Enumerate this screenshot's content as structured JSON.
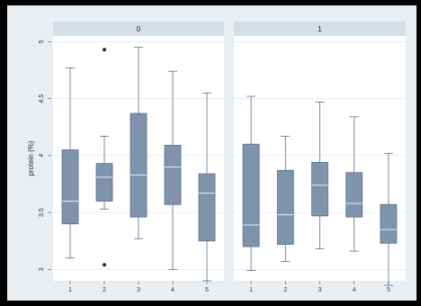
{
  "chart_data": {
    "type": "box",
    "ylabel": "protein (%)",
    "ylim": [
      2.9,
      5.05
    ],
    "yticks": [
      3,
      3.5,
      4,
      4.5,
      5
    ],
    "ytick_labels": [
      "3",
      "3.5",
      "4",
      "4.5",
      "5"
    ],
    "categories": [
      "1",
      "2",
      "3",
      "4",
      "5"
    ],
    "grid": true,
    "colors": {
      "box_fill": "#7f93ad",
      "box_edge": "#5a6f89",
      "whisker": "#5a6f89",
      "panel_bg": "#ffffff",
      "strip_bg": "#d5dde6",
      "outer_bg": "#e9eef3"
    },
    "panels": [
      {
        "label": "0",
        "boxes": [
          {
            "category": "1",
            "whisker_low": 3.1,
            "q1": 3.4,
            "median": 3.6,
            "q3": 4.05,
            "whisker_high": 4.77,
            "outliers": []
          },
          {
            "category": "2",
            "whisker_low": 3.53,
            "q1": 3.6,
            "median": 3.81,
            "q3": 3.93,
            "whisker_high": 4.17,
            "outliers": [
              4.93,
              3.04
            ]
          },
          {
            "category": "3",
            "whisker_low": 3.27,
            "q1": 3.46,
            "median": 3.83,
            "q3": 4.37,
            "whisker_high": 4.95,
            "outliers": []
          },
          {
            "category": "4",
            "whisker_low": 3.0,
            "q1": 3.57,
            "median": 3.9,
            "q3": 4.09,
            "whisker_high": 4.74,
            "outliers": []
          },
          {
            "category": "5",
            "whisker_low": 2.9,
            "q1": 3.25,
            "median": 3.67,
            "q3": 3.84,
            "whisker_high": 4.55,
            "outliers": []
          }
        ]
      },
      {
        "label": "1",
        "boxes": [
          {
            "category": "1",
            "whisker_low": 2.99,
            "q1": 3.2,
            "median": 3.39,
            "q3": 4.1,
            "whisker_high": 4.52,
            "outliers": []
          },
          {
            "category": "2",
            "whisker_low": 3.07,
            "q1": 3.22,
            "median": 3.48,
            "q3": 3.87,
            "whisker_high": 4.17,
            "outliers": []
          },
          {
            "category": "3",
            "whisker_low": 3.18,
            "q1": 3.47,
            "median": 3.74,
            "q3": 3.94,
            "whisker_high": 4.47,
            "outliers": []
          },
          {
            "category": "4",
            "whisker_low": 3.16,
            "q1": 3.46,
            "median": 3.58,
            "q3": 3.85,
            "whisker_high": 4.34,
            "outliers": []
          },
          {
            "category": "5",
            "whisker_low": 2.86,
            "q1": 3.23,
            "median": 3.35,
            "q3": 3.57,
            "whisker_high": 4.02,
            "outliers": []
          }
        ]
      }
    ]
  }
}
